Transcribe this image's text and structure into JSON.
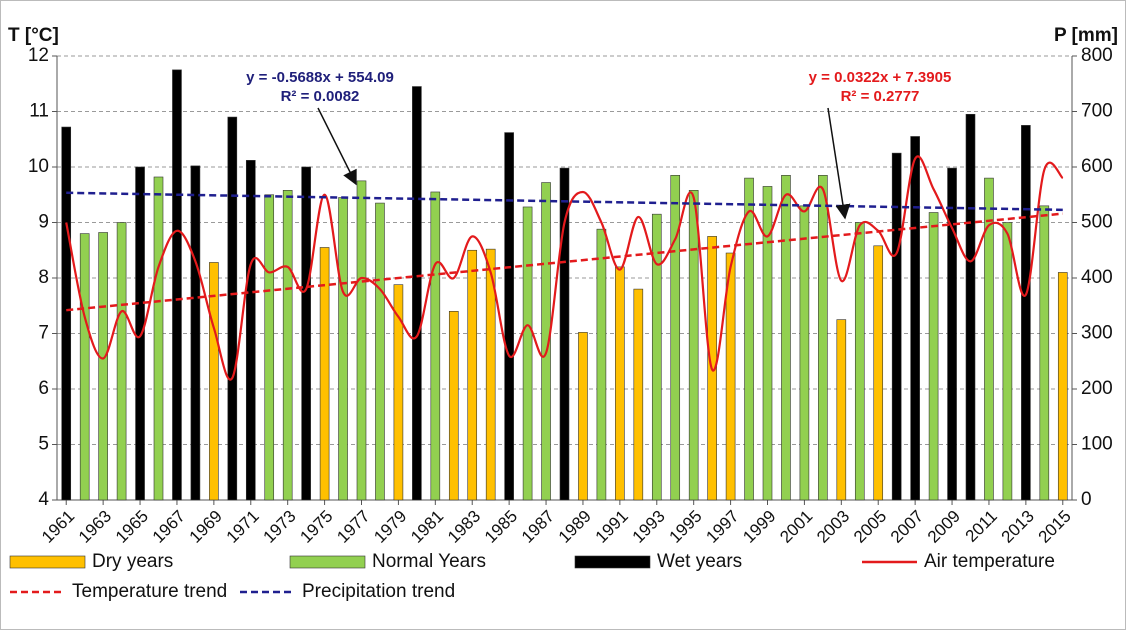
{
  "chart_data": {
    "type": "bar",
    "y_label": "T [°C]",
    "y2_label": "P [mm]",
    "annotations": [
      "y = -0.5688x + 554.09",
      "R² = 0.0082",
      "y = 0.0322x + 7.3905",
      "R² = 0.2777"
    ],
    "x": [
      1961,
      1962,
      1963,
      1964,
      1965,
      1966,
      1967,
      1968,
      1969,
      1970,
      1971,
      1972,
      1973,
      1974,
      1975,
      1976,
      1977,
      1978,
      1979,
      1980,
      1981,
      1982,
      1983,
      1984,
      1985,
      1986,
      1987,
      1988,
      1989,
      1990,
      1991,
      1992,
      1993,
      1994,
      1995,
      1996,
      1997,
      1998,
      1999,
      2000,
      2001,
      2002,
      2003,
      2004,
      2005,
      2006,
      2007,
      2008,
      2009,
      2010,
      2011,
      2012,
      2013,
      2014,
      2015
    ],
    "xlim": [
      1960.5,
      2015.5
    ],
    "xticks": [
      1961,
      1963,
      1965,
      1967,
      1969,
      1971,
      1973,
      1975,
      1977,
      1979,
      1981,
      1983,
      1985,
      1987,
      1989,
      1991,
      1993,
      1995,
      1997,
      1999,
      2001,
      2003,
      2005,
      2007,
      2009,
      2011,
      2013,
      2015
    ],
    "ylim": [
      4,
      12
    ],
    "yticks": [
      4,
      5,
      6,
      7,
      8,
      9,
      10,
      11,
      12
    ],
    "y2lim": [
      0,
      800
    ],
    "y2ticks": [
      0,
      100,
      200,
      300,
      400,
      500,
      600,
      700,
      800
    ],
    "grid": true,
    "legend": "bottom",
    "series": [
      {
        "name": "Dry years",
        "type": "bar",
        "axis": "y2",
        "color": "#ffc000",
        "values": [
          null,
          null,
          null,
          null,
          null,
          null,
          null,
          null,
          428,
          null,
          null,
          null,
          null,
          null,
          455,
          null,
          null,
          null,
          388,
          null,
          null,
          340,
          450,
          452,
          null,
          null,
          null,
          null,
          302,
          null,
          420,
          380,
          null,
          null,
          null,
          475,
          445,
          null,
          null,
          null,
          null,
          null,
          325,
          null,
          458,
          null,
          null,
          null,
          null,
          null,
          null,
          null,
          null,
          null,
          410
        ]
      },
      {
        "name": "Normal Years",
        "type": "bar",
        "axis": "y2",
        "color": "#92d050",
        "values": [
          null,
          480,
          482,
          500,
          null,
          582,
          null,
          null,
          null,
          null,
          null,
          550,
          558,
          null,
          null,
          545,
          575,
          535,
          null,
          null,
          555,
          null,
          null,
          null,
          null,
          528,
          572,
          null,
          null,
          488,
          null,
          null,
          515,
          585,
          558,
          null,
          null,
          580,
          565,
          585,
          530,
          585,
          null,
          500,
          null,
          null,
          null,
          518,
          null,
          null,
          580,
          500,
          null,
          530,
          null
        ]
      },
      {
        "name": "Wet years",
        "type": "bar",
        "axis": "y2",
        "color": "#000000",
        "values": [
          672,
          null,
          null,
          null,
          600,
          null,
          775,
          602,
          null,
          690,
          612,
          null,
          null,
          600,
          null,
          null,
          null,
          null,
          null,
          745,
          null,
          null,
          null,
          null,
          662,
          null,
          null,
          598,
          null,
          null,
          null,
          null,
          null,
          null,
          null,
          null,
          null,
          null,
          null,
          null,
          null,
          null,
          null,
          null,
          null,
          625,
          655,
          null,
          598,
          695,
          null,
          null,
          675,
          null,
          null
        ]
      },
      {
        "name": "Air temperature",
        "type": "line",
        "smooth": true,
        "color": "#e31a1c",
        "values": [
          9.0,
          7.3,
          6.55,
          7.4,
          6.95,
          8.2,
          8.85,
          8.3,
          7.1,
          6.2,
          8.25,
          8.1,
          8.2,
          7.8,
          9.5,
          7.75,
          8.0,
          7.8,
          7.3,
          6.95,
          8.25,
          8.0,
          8.75,
          8.1,
          6.6,
          7.15,
          6.65,
          9.0,
          9.55,
          9.0,
          8.15,
          9.1,
          8.25,
          8.7,
          9.45,
          6.35,
          8.2,
          9.2,
          8.75,
          9.5,
          9.2,
          9.6,
          7.95,
          8.95,
          8.85,
          8.45,
          10.15,
          9.6,
          8.9,
          8.3,
          8.95,
          8.8,
          7.7,
          9.95,
          9.8
        ]
      },
      {
        "name": "Temperature trend",
        "type": "line",
        "dashed": true,
        "color": "#e31a1c",
        "x": [
          1961,
          2015
        ],
        "values": [
          7.42,
          9.16
        ]
      },
      {
        "name": "Precipitation trend",
        "type": "line",
        "dashed": true,
        "axis": "y2",
        "color": "#1f1f8f",
        "x": [
          1961,
          2015
        ],
        "values": [
          553.5,
          522.8
        ]
      }
    ]
  }
}
